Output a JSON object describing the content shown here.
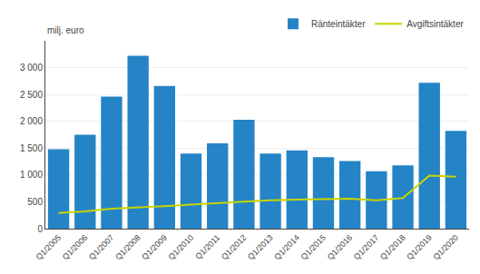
{
  "chart_data": {
    "type": "bar",
    "ylabel": "milj. euro",
    "categories": [
      "Q1/2005",
      "Q1/2006",
      "Q1/2007",
      "Q1/2008",
      "Q1/2009",
      "Q1/2010",
      "Q1/2011",
      "Q1/2012",
      "Q1/2013",
      "Q1/2014",
      "Q1/2015",
      "Q1/2016",
      "Q1/2017",
      "Q1/2018",
      "Q1/2019",
      "Q1/2020"
    ],
    "series": [
      {
        "name": "Ränteintäkter",
        "type": "bar",
        "color": "#2484C6",
        "values": [
          1480,
          1750,
          2460,
          3220,
          2660,
          1400,
          1590,
          2030,
          1400,
          1460,
          1330,
          1260,
          1070,
          1180,
          2720,
          1820
        ]
      },
      {
        "name": "Avgiftsintäkter",
        "type": "line",
        "color": "#C8D400",
        "values": [
          290,
          320,
          370,
          390,
          420,
          450,
          480,
          510,
          530,
          540,
          550,
          560,
          530,
          570,
          990,
          970
        ]
      }
    ],
    "ylim": [
      0,
      3500
    ],
    "yticks": [
      0,
      500,
      {
        "value": 1000,
        "label": "1 000"
      },
      {
        "value": 1500,
        "label": "1 500"
      },
      {
        "value": 2000,
        "label": "2 000"
      },
      {
        "value": 2500,
        "label": "2 500"
      },
      {
        "value": 3000,
        "label": "3 000"
      }
    ],
    "grid": true,
    "legend": "upper right"
  }
}
